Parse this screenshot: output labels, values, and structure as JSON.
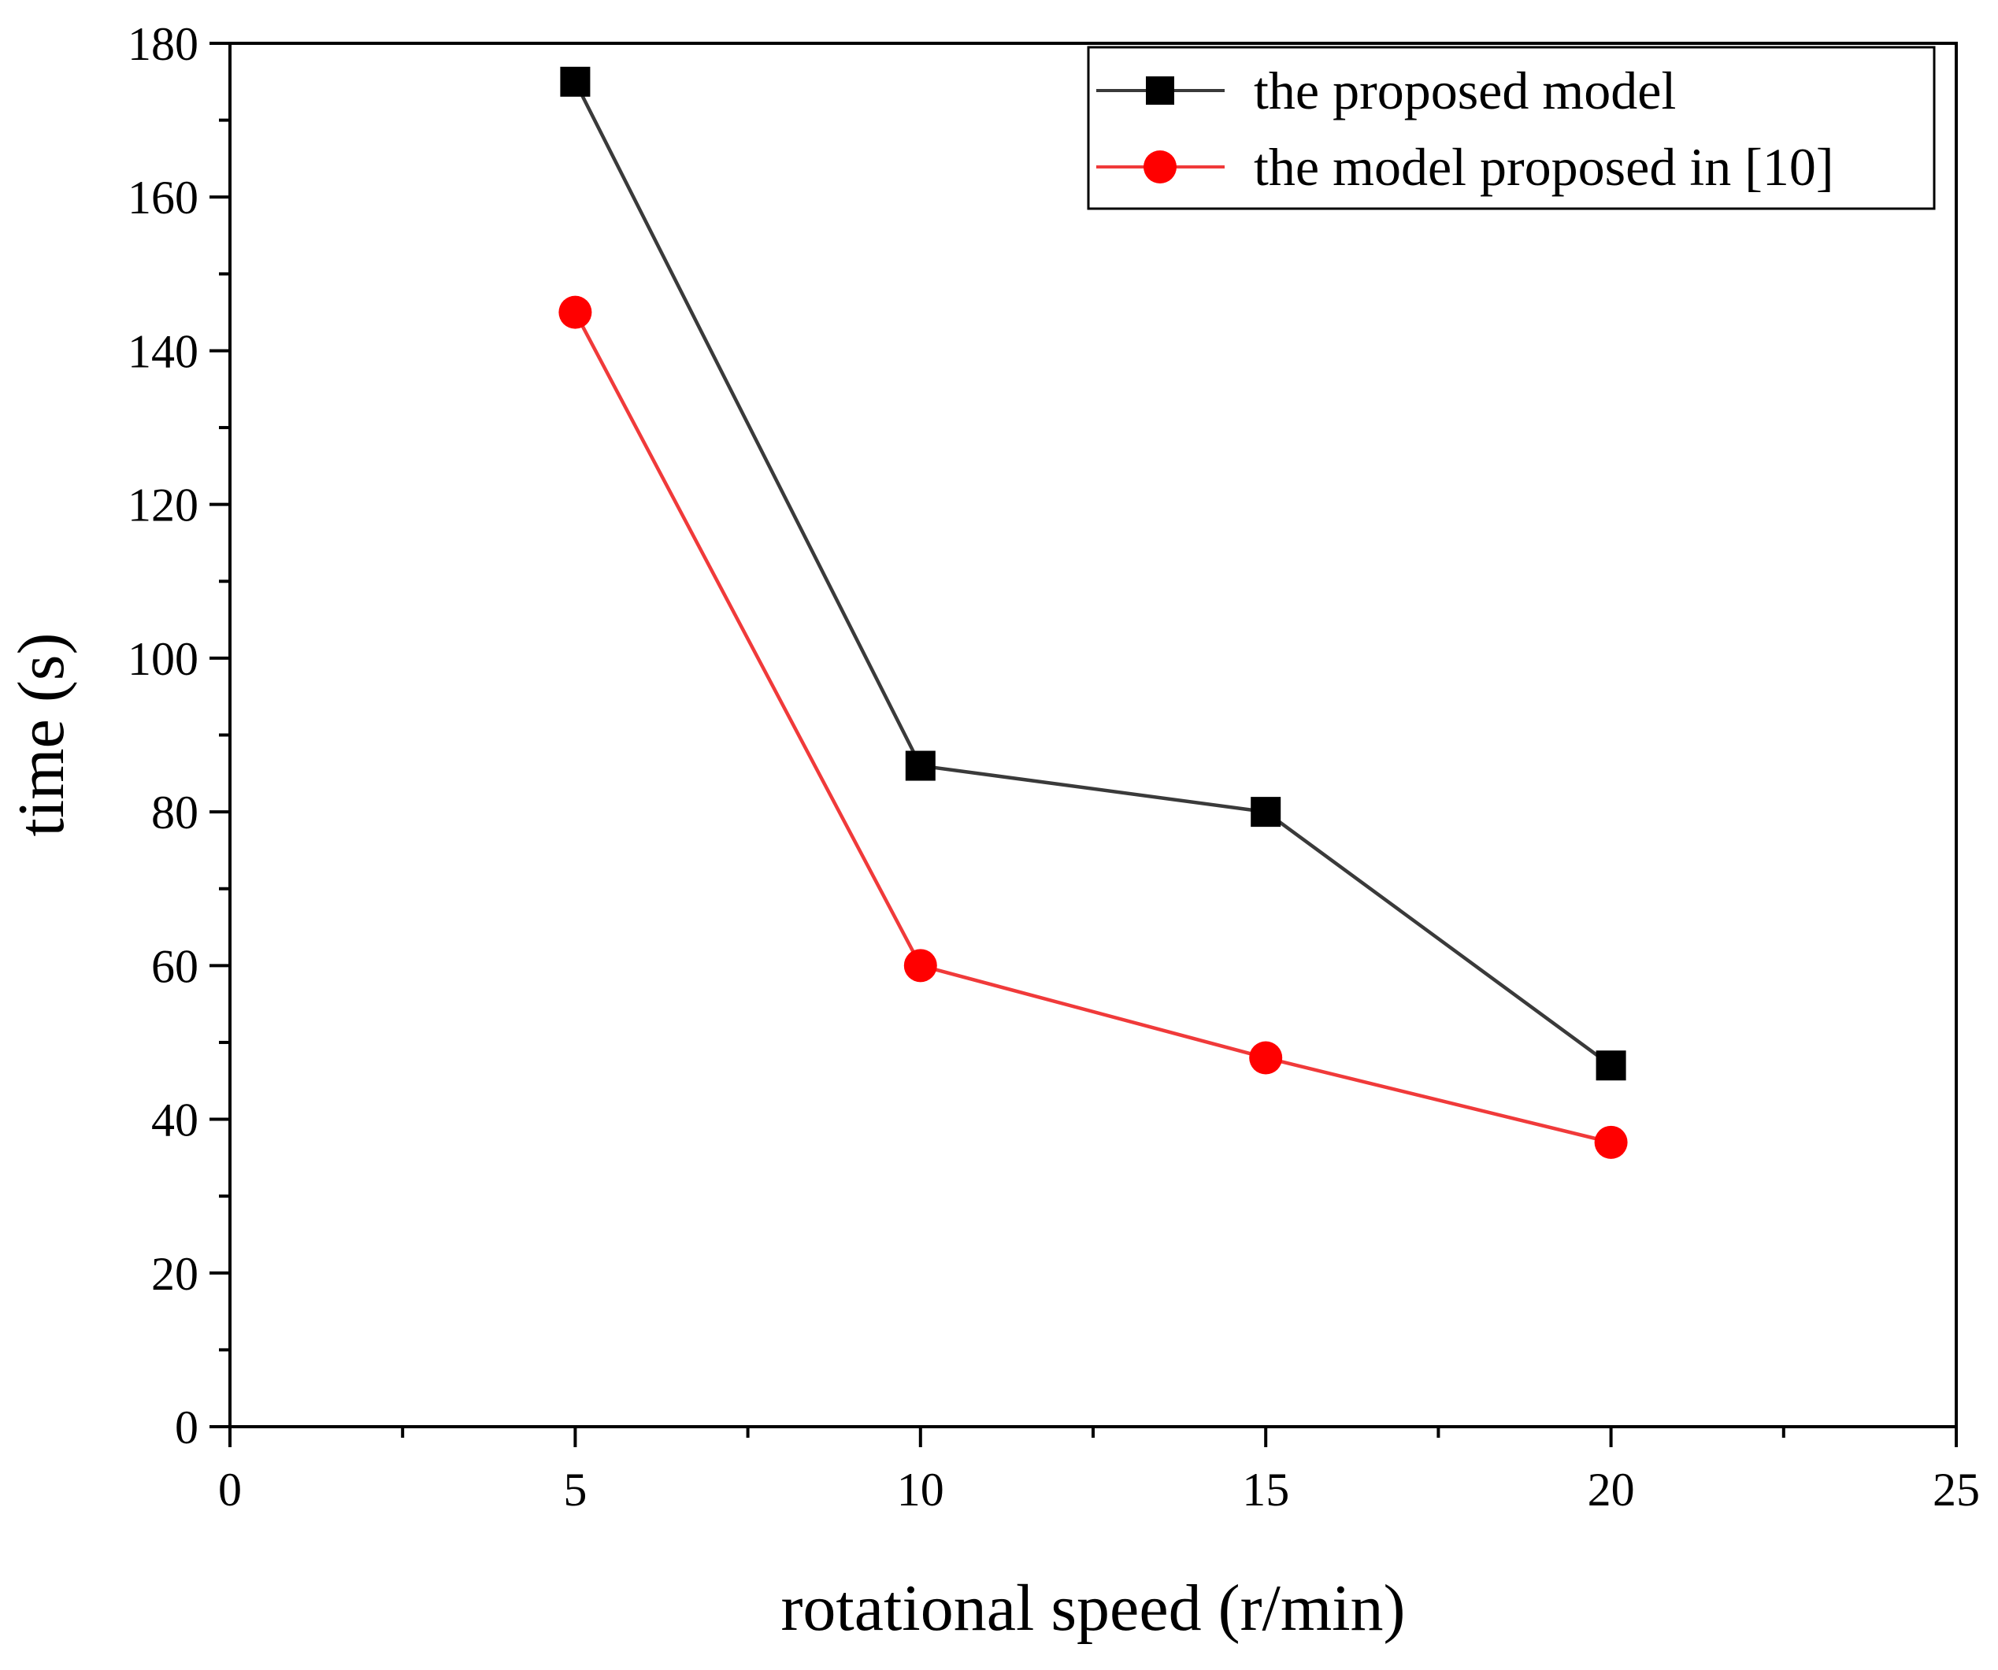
{
  "chart_data": {
    "type": "line",
    "title": "",
    "xlabel": "rotational speed (r/min)",
    "ylabel": "time (s)",
    "xlim": [
      0,
      25
    ],
    "ylim": [
      0,
      180
    ],
    "x_ticks": [
      "0",
      "5",
      "10",
      "15",
      "20",
      "25"
    ],
    "y_ticks": [
      "0",
      "20",
      "40",
      "60",
      "80",
      "100",
      "120",
      "140",
      "160",
      "180"
    ],
    "grid": false,
    "legend_position": "top-right",
    "series": [
      {
        "name": "the proposed model",
        "color": "#3a3a3a",
        "marker_color": "#000000",
        "marker": "square",
        "x": [
          5,
          10,
          15,
          20
        ],
        "y": [
          175,
          86,
          80,
          47
        ]
      },
      {
        "name": "the model proposed in [10]",
        "color": "#f03a3a",
        "marker_color": "#ff0000",
        "marker": "circle",
        "x": [
          5,
          10,
          15,
          20
        ],
        "y": [
          145,
          60,
          48,
          37
        ]
      }
    ]
  }
}
